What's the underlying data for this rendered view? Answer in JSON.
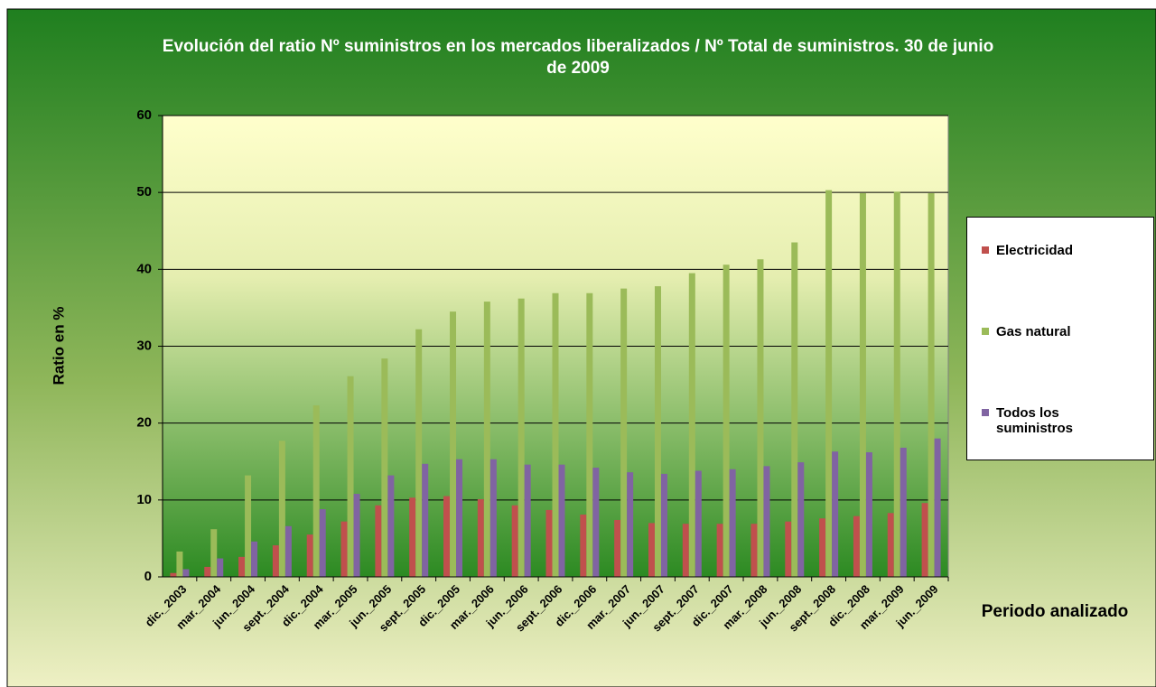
{
  "chart_data": {
    "type": "bar",
    "title": "Evolución del ratio Nº suministros en los mercados liberalizados / Nº Total de suministros. 30 de junio de 2009",
    "y_label": "Ratio en %",
    "x_label": "Periodo analizado",
    "categories": [
      "dic._2003",
      "mar._2004",
      "jun._2004",
      "sept._2004",
      "dic._2004",
      "mar._2005",
      "jun._2005",
      "sept._2005",
      "dic._2005",
      "mar._2006",
      "jun._2006",
      "sept._2006",
      "dic._2006",
      "mar._2007",
      "jun._2007",
      "sept._2007",
      "dic._2007",
      "mar._2008",
      "jun._2008",
      "sept._2008",
      "dic._2008",
      "mar._2009",
      "jun._2009"
    ],
    "series": [
      {
        "name": "Electricidad",
        "color": "#c0504d",
        "values": [
          0.5,
          1.3,
          2.6,
          4.1,
          5.5,
          7.2,
          9.3,
          10.3,
          10.5,
          10.1,
          9.3,
          8.7,
          8.1,
          7.4,
          7.0,
          6.9,
          6.9,
          6.9,
          7.2,
          7.6,
          7.9,
          8.3,
          9.6
        ]
      },
      {
        "name": "Gas natural",
        "color": "#9bbb59",
        "values": [
          3.3,
          6.2,
          13.2,
          17.7,
          22.3,
          26.1,
          28.4,
          32.2,
          34.5,
          35.8,
          36.2,
          36.9,
          36.9,
          37.5,
          37.8,
          39.5,
          40.6,
          41.3,
          43.5,
          50.3,
          49.9,
          50.1,
          49.9
        ]
      },
      {
        "name": "Todos los suministros",
        "color": "#8064a2",
        "values": [
          1.0,
          2.4,
          4.6,
          6.6,
          8.8,
          10.8,
          13.2,
          14.7,
          15.3,
          15.3,
          14.6,
          14.6,
          14.2,
          13.6,
          13.4,
          13.8,
          14.0,
          14.4,
          14.9,
          16.3,
          16.2,
          16.8,
          18.0
        ]
      }
    ],
    "ylim": [
      0,
      60
    ],
    "yticks": [
      0,
      10,
      20,
      30,
      40,
      50,
      60
    ],
    "grid": true
  }
}
